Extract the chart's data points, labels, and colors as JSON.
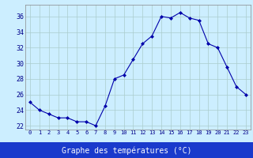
{
  "hours": [
    0,
    1,
    2,
    3,
    4,
    5,
    6,
    7,
    8,
    9,
    10,
    11,
    12,
    13,
    14,
    15,
    16,
    17,
    18,
    19,
    20,
    21,
    22,
    23
  ],
  "temps": [
    25.0,
    24.0,
    23.5,
    23.0,
    23.0,
    22.5,
    22.5,
    22.0,
    24.5,
    28.0,
    28.5,
    30.5,
    32.5,
    33.5,
    36.0,
    35.8,
    36.5,
    35.8,
    35.5,
    32.5,
    32.0,
    29.5,
    27.0,
    26.0
  ],
  "line_color": "#0000aa",
  "marker": "D",
  "marker_size": 2,
  "bg_color": "#cceeff",
  "grid_color": "#aacccc",
  "xlabel": "Graphe des températures (°C)",
  "ylabel_ticks": [
    22,
    24,
    26,
    28,
    30,
    32,
    34,
    36
  ],
  "xlim": [
    -0.5,
    23.5
  ],
  "ylim": [
    21.5,
    37.5
  ],
  "tick_label_color": "#00008b",
  "xlabel_bg": "#1a3acc"
}
